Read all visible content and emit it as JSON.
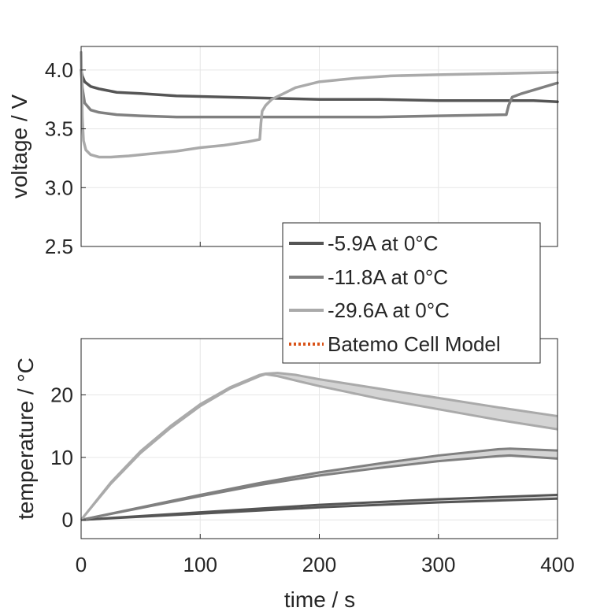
{
  "chart_data": [
    {
      "type": "line",
      "panel": "top",
      "xlabel": "",
      "ylabel": "voltage / V",
      "xlim": [
        0,
        400
      ],
      "ylim": [
        2.5,
        4.2
      ],
      "xticks": [
        0,
        100,
        200,
        300,
        400
      ],
      "yticks": [
        2.5,
        3.0,
        3.5,
        4.0
      ],
      "ytick_labels": [
        "2.5",
        "3.0",
        "3.5",
        "4.0"
      ],
      "grid": true,
      "series": [
        {
          "name": "-5.9A at 0°C",
          "color": "#555555",
          "x": [
            0,
            1,
            3,
            8,
            15,
            30,
            50,
            80,
            120,
            160,
            200,
            250,
            300,
            350,
            360,
            380,
            400
          ],
          "y": [
            4.0,
            3.95,
            3.9,
            3.86,
            3.84,
            3.81,
            3.8,
            3.78,
            3.77,
            3.76,
            3.75,
            3.75,
            3.74,
            3.74,
            3.74,
            3.74,
            3.73
          ]
        },
        {
          "name": "-11.8A at 0°C",
          "color": "#808080",
          "x": [
            0,
            1,
            3,
            8,
            15,
            30,
            50,
            80,
            100,
            150,
            200,
            250,
            300,
            357,
            359,
            362,
            370,
            380,
            390,
            400
          ],
          "y": [
            4.0,
            3.85,
            3.72,
            3.66,
            3.64,
            3.62,
            3.61,
            3.6,
            3.6,
            3.6,
            3.6,
            3.6,
            3.61,
            3.62,
            3.7,
            3.77,
            3.8,
            3.83,
            3.86,
            3.89
          ]
        },
        {
          "name": "-29.6A at 0°C",
          "color": "#aaaaaa",
          "x": [
            0,
            0.5,
            1,
            2,
            4,
            8,
            15,
            25,
            40,
            60,
            80,
            100,
            120,
            140,
            150,
            151,
            152,
            155,
            160,
            170,
            180,
            200,
            230,
            260,
            300,
            350,
            400
          ],
          "y": [
            4.15,
            3.9,
            3.6,
            3.4,
            3.32,
            3.28,
            3.26,
            3.26,
            3.27,
            3.29,
            3.31,
            3.34,
            3.36,
            3.39,
            3.41,
            3.55,
            3.65,
            3.7,
            3.75,
            3.8,
            3.85,
            3.9,
            3.93,
            3.95,
            3.96,
            3.97,
            3.98
          ]
        }
      ]
    },
    {
      "type": "area",
      "panel": "bottom",
      "xlabel": "time / s",
      "ylabel": "temperature / °C",
      "xlim": [
        0,
        400
      ],
      "ylim": [
        -3,
        29
      ],
      "xticks": [
        0,
        100,
        200,
        300,
        400
      ],
      "yticks": [
        0,
        10,
        20
      ],
      "ytick_labels": [
        "0",
        "10",
        "20"
      ],
      "grid": true,
      "series": [
        {
          "name": "-5.9A at 0°C",
          "color": "#555555",
          "x": [
            0,
            100,
            200,
            300,
            400
          ],
          "upper": [
            0,
            1.2,
            2.4,
            3.3,
            4.0
          ],
          "lower": [
            0,
            1.0,
            2.0,
            2.8,
            3.4
          ]
        },
        {
          "name": "-11.8A at 0°C",
          "color": "#808080",
          "x": [
            0,
            50,
            100,
            150,
            200,
            250,
            300,
            350,
            360,
            400
          ],
          "upper": [
            0,
            2.0,
            4.0,
            5.9,
            7.6,
            9.0,
            10.3,
            11.3,
            11.4,
            11.1
          ],
          "lower": [
            0,
            1.9,
            3.8,
            5.6,
            7.1,
            8.3,
            9.4,
            10.2,
            10.3,
            9.8
          ]
        },
        {
          "name": "-29.6A at 0°C",
          "color": "#aaaaaa",
          "x": [
            0,
            25,
            50,
            75,
            100,
            125,
            150,
            155,
            165,
            180,
            200,
            250,
            300,
            350,
            400
          ],
          "upper": [
            0,
            6.0,
            11.0,
            15.0,
            18.5,
            21.2,
            23.2,
            23.4,
            23.5,
            23.2,
            22.5,
            21.0,
            19.5,
            18.0,
            16.6
          ],
          "lower": [
            0,
            5.8,
            10.7,
            14.7,
            18.2,
            21.0,
            23.0,
            23.3,
            23.0,
            22.3,
            21.4,
            19.4,
            17.7,
            16.0,
            14.5
          ]
        }
      ]
    }
  ],
  "legend": {
    "placement": "between panels, right",
    "entries": [
      {
        "label": "-5.9A at 0°C",
        "color": "#555555",
        "style": "solid"
      },
      {
        "label": "-11.8A at 0°C",
        "color": "#808080",
        "style": "solid"
      },
      {
        "label": "-29.6A at 0°C",
        "color": "#aaaaaa",
        "style": "solid"
      },
      {
        "label": "Batemo Cell Model",
        "color": "#d95319",
        "style": "dotted"
      }
    ]
  }
}
